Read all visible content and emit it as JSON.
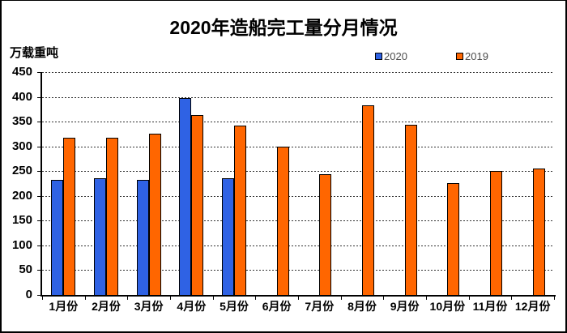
{
  "title": "2020年造船完工量分月情况",
  "y_axis_unit": "万载重吨",
  "legend": {
    "items": [
      {
        "label": "2020",
        "color": "#2F62E4"
      },
      {
        "label": "2019",
        "color": "#FF6600"
      }
    ]
  },
  "chart_data": {
    "type": "bar",
    "title": "2020年造船完工量分月情况",
    "ylabel": "万载重吨",
    "categories": [
      "1月份",
      "2月份",
      "3月份",
      "4月份",
      "5月份",
      "6月份",
      "7月份",
      "8月份",
      "9月份",
      "10月份",
      "11月份",
      "12月份"
    ],
    "series": [
      {
        "name": "2020",
        "color": "#2F62E4",
        "values": [
          233,
          235,
          233,
          398,
          235,
          null,
          null,
          null,
          null,
          null,
          null,
          null
        ]
      },
      {
        "name": "2019",
        "color": "#FF6600",
        "values": [
          317,
          317,
          326,
          363,
          342,
          299,
          244,
          383,
          343,
          226,
          251,
          256
        ]
      }
    ],
    "ylim": [
      0,
      450
    ],
    "ytick_step": 50,
    "grid": "horizontal-dotted",
    "legend_position": "top"
  }
}
